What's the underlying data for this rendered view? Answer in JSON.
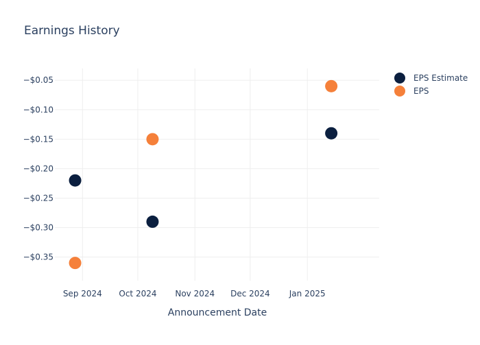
{
  "chart_data": {
    "type": "scatter",
    "title": "Earnings History",
    "xlabel": "Announcement Date",
    "ylabel": "",
    "x_ticks": [
      {
        "date": "2024-09-01",
        "label": "Sep 2024"
      },
      {
        "date": "2024-10-01",
        "label": "Oct 2024"
      },
      {
        "date": "2024-11-01",
        "label": "Nov 2024"
      },
      {
        "date": "2024-12-01",
        "label": "Dec 2024"
      },
      {
        "date": "2025-01-01",
        "label": "Jan 2025"
      }
    ],
    "xlim": [
      "2024-08-17",
      "2025-02-09"
    ],
    "y_ticks": [
      {
        "value": -0.05,
        "label": "−$0.05"
      },
      {
        "value": -0.1,
        "label": "−$0.10"
      },
      {
        "value": -0.15,
        "label": "−$0.15"
      },
      {
        "value": -0.2,
        "label": "−$0.20"
      },
      {
        "value": -0.25,
        "label": "−$0.25"
      },
      {
        "value": -0.3,
        "label": "−$0.30"
      },
      {
        "value": -0.35,
        "label": "−$0.35"
      }
    ],
    "ylim": [
      -0.39,
      -0.03
    ],
    "grid": true,
    "legend_position": "top-right",
    "series": [
      {
        "name": "EPS Estimate",
        "color": "#0b1f3f",
        "points": [
          {
            "x": "2024-08-28",
            "y": -0.22
          },
          {
            "x": "2024-10-09",
            "y": -0.29
          },
          {
            "x": "2025-01-14",
            "y": -0.14
          }
        ]
      },
      {
        "name": "EPS",
        "color": "#f5803a",
        "points": [
          {
            "x": "2024-08-28",
            "y": -0.36
          },
          {
            "x": "2024-10-09",
            "y": -0.15
          },
          {
            "x": "2025-01-14",
            "y": -0.06
          }
        ]
      }
    ]
  }
}
